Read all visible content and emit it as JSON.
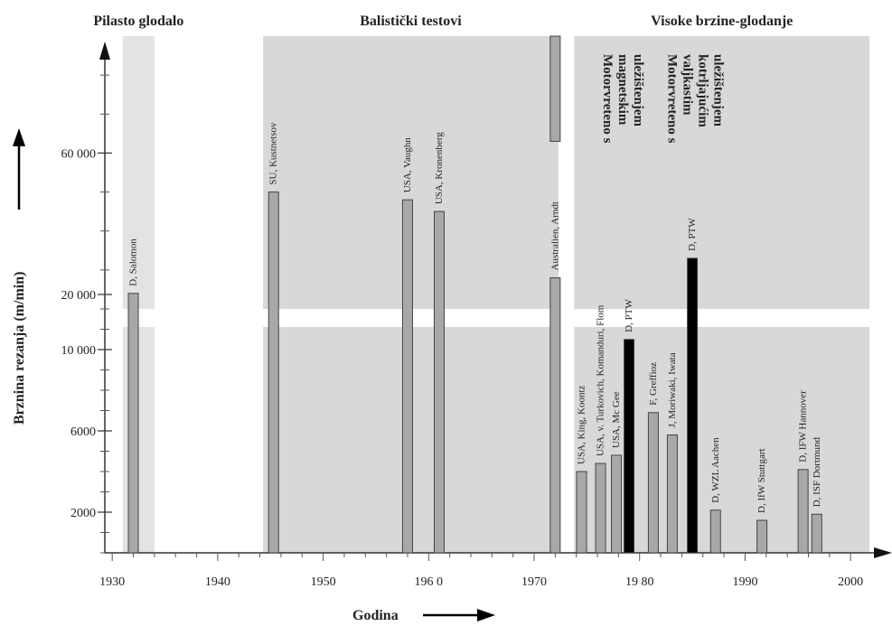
{
  "chart_data": {
    "type": "bar",
    "regions": [
      {
        "title": "Pilasto glodalo",
        "x_from": 1931,
        "x_to": 1934
      },
      {
        "title": "Balistički testovi",
        "x_from": 1944.3,
        "x_to": 1972.3
      },
      {
        "title": "Visoke brzine-glodanje",
        "x_from": 1973.8,
        "x_to": 2001.8
      }
    ],
    "x_label": "Godina",
    "y_label": "Brznina rezanja (m/min)",
    "x_ticks": [
      1930,
      1940,
      1950,
      1960,
      1970,
      1980,
      1990,
      2000
    ],
    "x_tick_labels": [
      "1930",
      "1940",
      "1950",
      "196 0",
      "1970",
      "19 80",
      "1990",
      "2000"
    ],
    "xlim": [
      1929.3,
      2003.5
    ],
    "y_ticks": [
      2000,
      6000,
      10000,
      20000,
      60000
    ],
    "y_tick_labels": [
      "2000",
      "6000",
      "10 000",
      "20  000",
      "60 000"
    ],
    "axis_break": {
      "lower_max": 10000,
      "upper_min": 20000
    },
    "lower_ylim": [
      0,
      12000
    ],
    "upper_ylim": [
      20000,
      90000
    ],
    "bars": [
      {
        "label": "D, Salomon",
        "x": 1932,
        "value": 24000,
        "color": "#a8a8a8"
      },
      {
        "label": "SU, Kustnetsov",
        "x": 1945.3,
        "value": 50000,
        "color": "#a8a8a8"
      },
      {
        "label": "USA, Vaughn",
        "x": 1958,
        "value": 48000,
        "color": "#a8a8a8"
      },
      {
        "label": "USA, Kronenberg",
        "x": 1961,
        "value": 45000,
        "color": "#a8a8a8"
      },
      {
        "label": "Australien,   Arndt",
        "x": 1972,
        "value": 28000,
        "color": "#a8a8a8",
        "top_bar_from": 63000,
        "top_bar_to": 90000
      },
      {
        "label": "USA, King, Koontz",
        "x": 1974.5,
        "value": 4000,
        "color": "#a8a8a8"
      },
      {
        "label": "USA, v. Turkovich, Komanduri, Flom",
        "x": 1976.3,
        "value": 4400,
        "color": "#a8a8a8"
      },
      {
        "label": "USA, Mc Gee",
        "x": 1977.8,
        "value": 4800,
        "color": "#a8a8a8"
      },
      {
        "label": "D, PTW",
        "x": 1979,
        "value": 10500,
        "color": "#000000"
      },
      {
        "label": "F, Greffioz",
        "x": 1981.3,
        "value": 6900,
        "color": "#a8a8a8"
      },
      {
        "label": "J, Moriwaki, Iwata",
        "x": 1983.1,
        "value": 5800,
        "color": "#a8a8a8"
      },
      {
        "label": "D, PTW",
        "x": 1985,
        "value": 33000,
        "color": "#000000"
      },
      {
        "label": "D, WZL Aachen",
        "x": 1987.2,
        "value": 2100,
        "color": "#a8a8a8"
      },
      {
        "label": "D, IfW Stuttgart",
        "x": 1991.6,
        "value": 1600,
        "color": "#a8a8a8"
      },
      {
        "label": "D, IFW Hannover",
        "x": 1995.5,
        "value": 4100,
        "color": "#a8a8a8"
      },
      {
        "label": "D, ISF Dortmund",
        "x": 1996.8,
        "value": 1900,
        "color": "#a8a8a8"
      }
    ],
    "annotations": [
      {
        "lines": [
          "Motorvreteno s",
          "magnetskim",
          "uležištenjem"
        ],
        "x": 1979
      },
      {
        "lines": [
          "Motorvreteno s",
          "valjkastim",
          "kotrljajućim",
          "uležištenjem"
        ],
        "x": 1985.1
      }
    ]
  }
}
